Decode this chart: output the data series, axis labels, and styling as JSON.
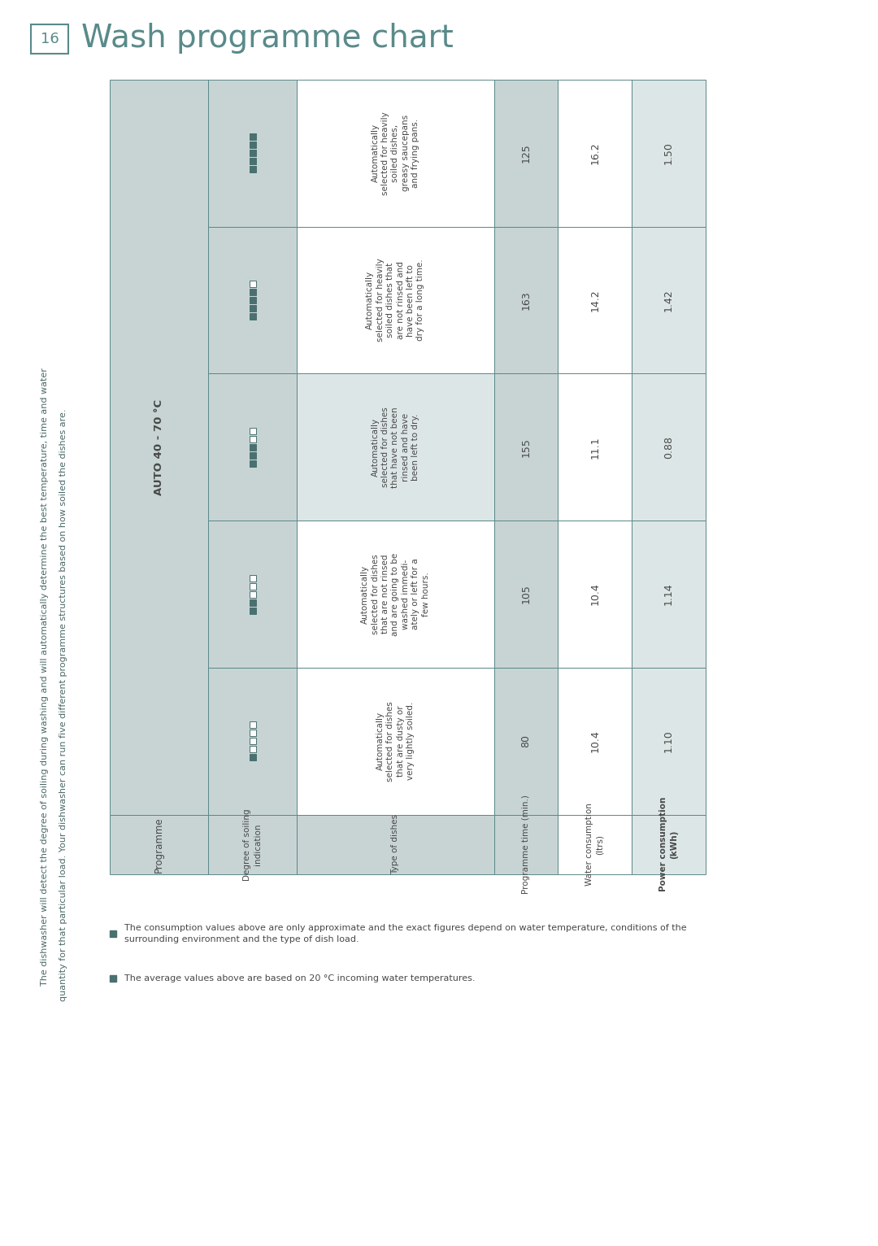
{
  "page_num": "16",
  "title": "Wash programme chart",
  "title_color": "#5a8a8a",
  "page_bg": "#ffffff",
  "rotated_para1": "The dishwasher will detect the degree of soiling during washing and will automatically determine the best temperature, time and water",
  "rotated_para2": "quantity for that particular load. Your dishwasher can run five different programme structures based on how soiled the dishes are.",
  "table_header_bg": "#c8d4d4",
  "table_alt_bg": "#dde6e6",
  "table_white_bg": "#ffffff",
  "table_border_color": "#5a8888",
  "table_text_color": "#484848",
  "auto_label": "AUTO 40 - 70 °C",
  "row_labels": [
    "Programme",
    "Degree of soiling\nindication",
    "Type of dishes",
    "Programme time (min.)",
    "Water consumption\n(ltrs)",
    "Power consumption\n(kWh)"
  ],
  "col_patterns": [
    [
      true,
      false,
      false,
      false,
      false
    ],
    [
      true,
      true,
      false,
      false,
      false
    ],
    [
      true,
      true,
      true,
      false,
      false
    ],
    [
      true,
      true,
      true,
      true,
      false
    ],
    [
      true,
      true,
      true,
      true,
      true
    ]
  ],
  "dish_descriptions": [
    "Automatically\nselected for dishes\nthat are dusty or\nvery lightly soiled.",
    "Automatically\nselected for dishes\nthat are not rinsed\nand are going to be\nwashed immedi-\nately or left for a\nfew hours.",
    "Automatically\nselected for dishes\nthat have not been\nrinsed and have\nbeen left to dry.",
    "Automatically\nselected for heavily\nsoiled dishes that\nare not rinsed and\nhave been left to\ndry for a long time.",
    "Automatically\nselected for heavily\nsoiled dishes,\ngreasy saucepans\nand frying pans."
  ],
  "programme_times": [
    "80",
    "105",
    "155",
    "163",
    "125"
  ],
  "water_consumption": [
    "10.4",
    "10.4",
    "11.1",
    "14.2",
    "16.2"
  ],
  "power_consumption": [
    "1.10",
    "1.14",
    "0.88",
    "1.42",
    "1.50"
  ],
  "col_bg": [
    "#ffffff",
    "#ffffff",
    "#dde6e6",
    "#ffffff",
    "#ffffff"
  ],
  "footer_lines": [
    "The consumption values above are only approximate and the exact figures depend on water temperature, conditions of the\nsurrounding environment and the type of dish load.",
    "The average values above are based on 20 °C incoming water temperatures."
  ],
  "sq_filled_color": "#4a7070",
  "sq_empty_color": "#ffffff",
  "sq_border_color": "#4a7070",
  "footer_sq_color": "#4a7070"
}
